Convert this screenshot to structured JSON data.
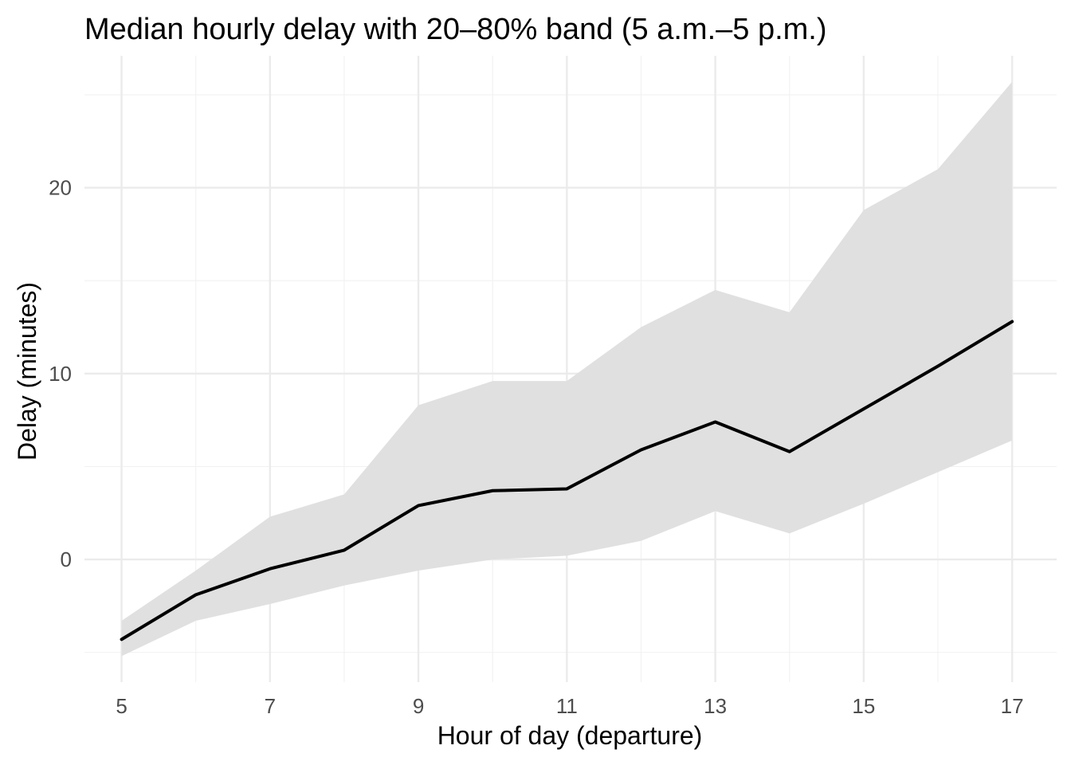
{
  "chart_data": {
    "type": "area",
    "title": "Median hourly delay with 20–80% band (5 a.m.–5 p.m.)",
    "xlabel": "Hour of day (departure)",
    "ylabel": "Delay (minutes)",
    "x": [
      5,
      6,
      7,
      8,
      9,
      10,
      11,
      12,
      13,
      14,
      15,
      16,
      17
    ],
    "series": [
      {
        "role": "median",
        "values": [
          -4.3,
          -1.9,
          -0.5,
          0.5,
          2.9,
          3.7,
          3.8,
          5.9,
          7.4,
          5.8,
          8.1,
          10.4,
          12.8
        ],
        "color": "#000000"
      },
      {
        "role": "band_low",
        "values": [
          -5.2,
          -3.3,
          -2.4,
          -1.4,
          -0.6,
          0.0,
          0.2,
          1.0,
          2.6,
          1.4,
          3.0,
          4.7,
          6.4
        ],
        "color": "#e0e0e0"
      },
      {
        "role": "band_high",
        "values": [
          -3.3,
          -0.6,
          2.3,
          3.5,
          8.3,
          9.6,
          9.6,
          12.5,
          14.5,
          13.3,
          18.8,
          21.0,
          25.7
        ],
        "color": "#e0e0e0"
      }
    ],
    "xlim": [
      4.5,
      17.6
    ],
    "ylim": [
      -6.6,
      27.1
    ],
    "x_ticks": [
      5,
      7,
      9,
      11,
      13,
      15,
      17
    ],
    "x_minor_ticks": [
      6,
      8,
      10,
      12,
      14,
      16
    ],
    "y_ticks": [
      0,
      10,
      20
    ],
    "y_minor_ticks": [
      -5,
      5,
      15,
      25
    ],
    "grid": true,
    "legend": "none",
    "background": "#ffffff"
  }
}
